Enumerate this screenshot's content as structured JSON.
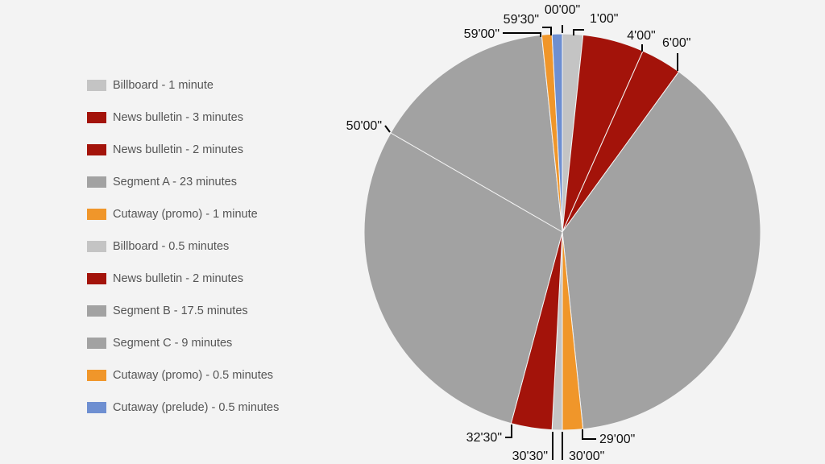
{
  "chart_data": {
    "type": "pie",
    "title": "",
    "unit": "minutes",
    "start_angle": "top",
    "direction": "clockwise",
    "legend_position": "left",
    "slices": [
      {
        "label": "Billboard - 1 minute",
        "value": 1,
        "color": "#c4c4c4"
      },
      {
        "label": "News bulletin - 3 minutes",
        "value": 3,
        "color": "#a3130a"
      },
      {
        "label": "News bulletin - 2 minutes",
        "value": 2,
        "color": "#a3130a"
      },
      {
        "label": "Segment A - 23 minutes",
        "value": 23,
        "color": "#a2a2a2"
      },
      {
        "label": "Cutaway (promo) - 1 minute",
        "value": 1,
        "color": "#f0962a"
      },
      {
        "label": "Billboard - 0.5 minutes",
        "value": 0.5,
        "color": "#c4c4c4"
      },
      {
        "label": "News bulletin - 2 minutes",
        "value": 2,
        "color": "#a3130a"
      },
      {
        "label": "Segment B - 17.5 minutes",
        "value": 17.5,
        "color": "#a2a2a2"
      },
      {
        "label": "Segment C - 9 minutes",
        "value": 9,
        "color": "#a2a2a2"
      },
      {
        "label": "Cutaway (promo) - 0.5 minutes",
        "value": 0.5,
        "color": "#f0962a"
      },
      {
        "label": "Cutaway (prelude) - 0.5 minutes",
        "value": 0.5,
        "color": "#6e8fd1"
      }
    ],
    "time_markers": [
      {
        "label": "00'00\"",
        "minute": 0
      },
      {
        "label": "1'00\"",
        "minute": 1
      },
      {
        "label": "4'00\"",
        "minute": 4
      },
      {
        "label": "6'00\"",
        "minute": 6
      },
      {
        "label": "29'00\"",
        "minute": 29
      },
      {
        "label": "30'00\"",
        "minute": 30
      },
      {
        "label": "30'30\"",
        "minute": 30.5
      },
      {
        "label": "32'30\"",
        "minute": 32.5
      },
      {
        "label": "50'00\"",
        "minute": 50
      },
      {
        "label": "59'00\"",
        "minute": 59
      },
      {
        "label": "59'30\"",
        "minute": 59.5
      }
    ]
  }
}
